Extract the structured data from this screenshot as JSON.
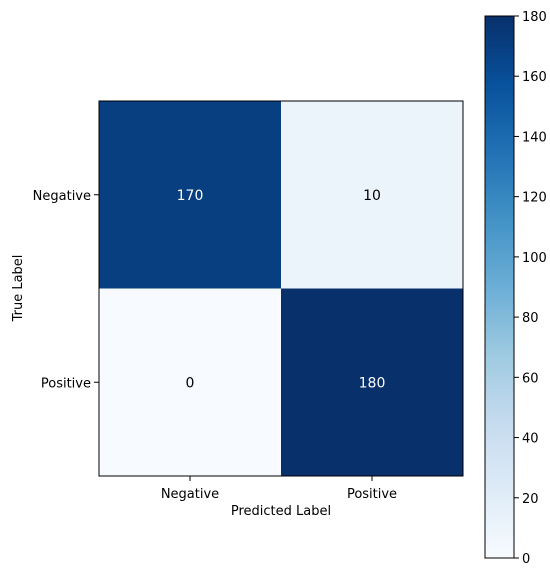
{
  "chart_data": {
    "type": "heatmap",
    "xlabel": "Predicted Label",
    "ylabel": "True Label",
    "x_categories": [
      "Negative",
      "Positive"
    ],
    "y_categories": [
      "Negative",
      "Positive"
    ],
    "values": [
      [
        170,
        10
      ],
      [
        0,
        180
      ]
    ],
    "colorbar": {
      "colormap": "Blues",
      "min": 0,
      "max": 180,
      "ticks": [
        0,
        20,
        40,
        60,
        80,
        100,
        120,
        140,
        160,
        180
      ]
    }
  }
}
